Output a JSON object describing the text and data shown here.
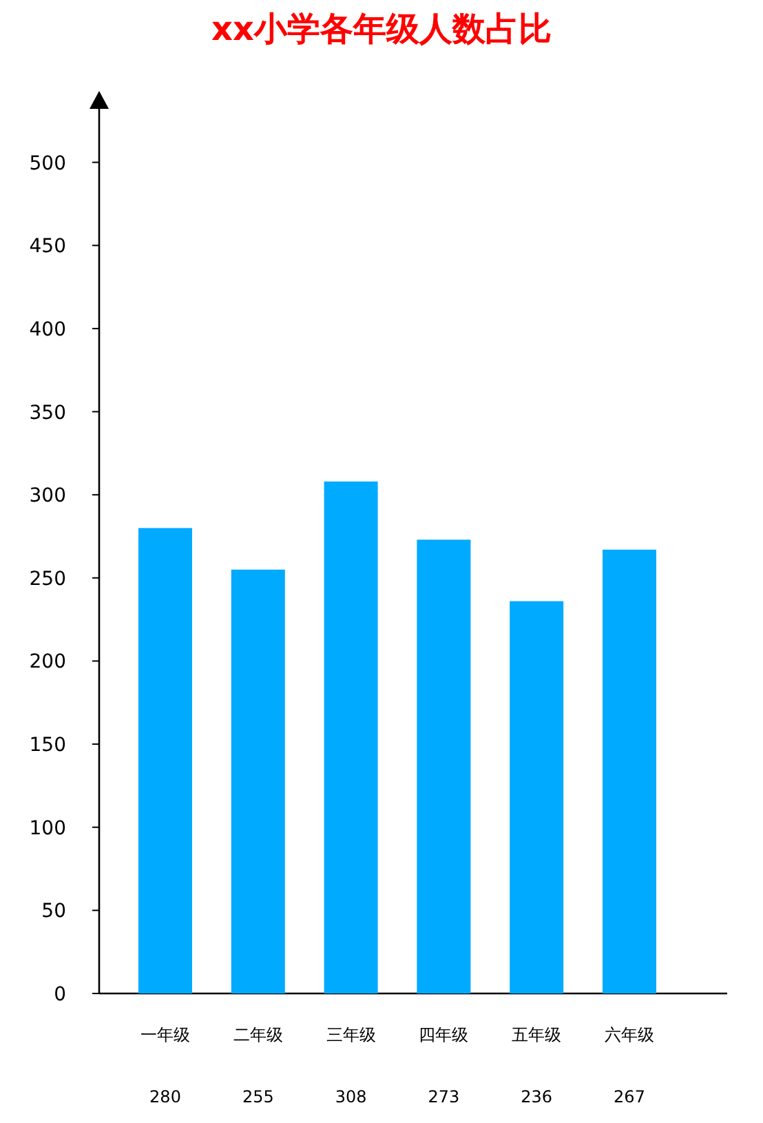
{
  "chart_data": {
    "type": "bar",
    "title": "xx小学各年级人数占比",
    "categories": [
      "一年级",
      "二年级",
      "三年级",
      "四年级",
      "五年级",
      "六年级"
    ],
    "values": [
      280,
      255,
      308,
      273,
      236,
      267
    ],
    "color": "#00aaff",
    "ylim": [
      0,
      533
    ],
    "yticks": [
      0,
      50,
      100,
      150,
      200,
      250,
      300,
      350,
      400,
      450,
      500
    ],
    "data_labels": true
  }
}
